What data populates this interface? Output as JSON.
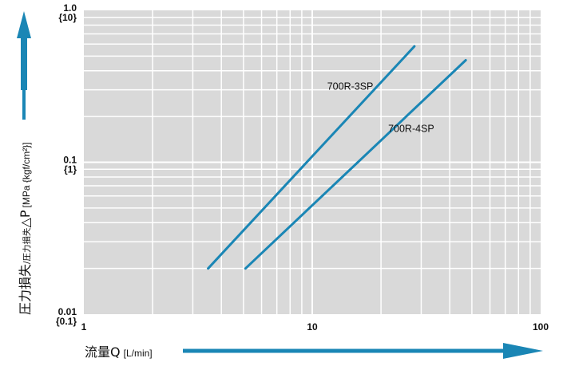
{
  "chart_data": {
    "type": "line",
    "x_scale": "log",
    "y_scale": "log",
    "xlim": [
      1,
      100
    ],
    "ylim": [
      0.01,
      1.0
    ],
    "grid": true,
    "x_ticks": [
      {
        "value": 1,
        "label": "1"
      },
      {
        "value": 10,
        "label": "10"
      },
      {
        "value": 100,
        "label": "100"
      }
    ],
    "y_ticks": [
      {
        "value": 1.0,
        "label": "1.0",
        "sublabel": "{10}"
      },
      {
        "value": 0.1,
        "label": "0.1",
        "sublabel": "{1}"
      },
      {
        "value": 0.01,
        "label": "0.01",
        "sublabel": "{0.1}"
      }
    ],
    "xlabel": {
      "main": "流量Q",
      "unit": "[L/min]"
    },
    "ylabel": {
      "main": "圧力損失",
      "sub": "/圧力損失",
      "symbol": "△P",
      "unit": "[MPa {kgf/cm²}]"
    },
    "series": [
      {
        "name": "700R-3SP",
        "color": "#1a86b5",
        "points": [
          [
            3.5,
            0.02
          ],
          [
            28,
            0.58
          ]
        ]
      },
      {
        "name": "700R-4SP",
        "color": "#1a86b5",
        "points": [
          [
            5.1,
            0.02
          ],
          [
            47,
            0.47
          ]
        ]
      }
    ],
    "colors": {
      "plot_background": "#d9d9d9",
      "grid": "#ffffff",
      "accent": "#1a86b5"
    }
  }
}
